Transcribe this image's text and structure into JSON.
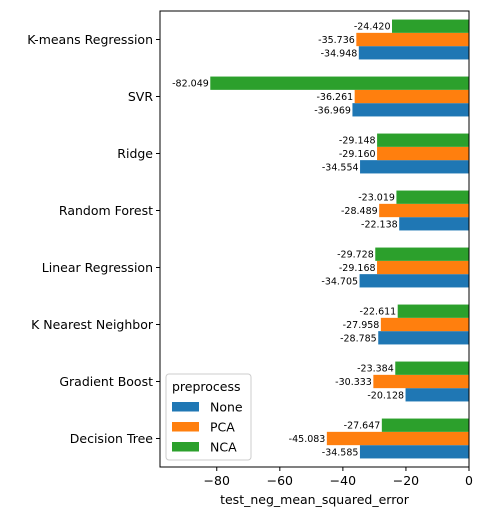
{
  "chart_data": {
    "type": "bar",
    "orientation": "horizontal",
    "xlabel": "test_neg_mean_squared_error",
    "ylabel": "",
    "xlim": [
      -98,
      0
    ],
    "xticks": [
      -80,
      -60,
      -40,
      -20,
      0
    ],
    "xtick_labels": [
      "−80",
      "−60",
      "−40",
      "−20",
      "0"
    ],
    "categories": [
      "K-means Regression",
      "SVR",
      "Ridge",
      "Random Forest",
      "Linear Regression",
      "K Nearest Neighbor",
      "Gradient Boost",
      "Decision Tree"
    ],
    "series": [
      {
        "name": "None",
        "color": "#1f77b4",
        "values": [
          -34.948,
          -36.969,
          -34.554,
          -22.138,
          -34.705,
          -28.785,
          -20.128,
          -34.585
        ],
        "labels": [
          "-34.948",
          "-36.969",
          "-34.554",
          "-22.138",
          "-34.705",
          "-28.785",
          "-20.128",
          "-34.585"
        ]
      },
      {
        "name": "PCA",
        "color": "#ff7f0e",
        "values": [
          -35.736,
          -36.261,
          -29.16,
          -28.489,
          -29.168,
          -27.958,
          -30.333,
          -45.083
        ],
        "labels": [
          "-35.736",
          "-36.261",
          "-29.160",
          "-28.489",
          "-29.168",
          "-27.958",
          "-30.333",
          "-45.083"
        ]
      },
      {
        "name": "NCA",
        "color": "#2ca02c",
        "values": [
          -24.42,
          -82.049,
          -29.148,
          -23.019,
          -29.728,
          -22.611,
          -23.384,
          -27.647
        ],
        "labels": [
          "-24.420",
          "-82.049",
          "-29.148",
          "-23.019",
          "-29.728",
          "-22.611",
          "-23.384",
          "-27.647"
        ]
      }
    ],
    "legend": {
      "title": "preprocess",
      "placement": "lower-left"
    },
    "grid": false
  }
}
